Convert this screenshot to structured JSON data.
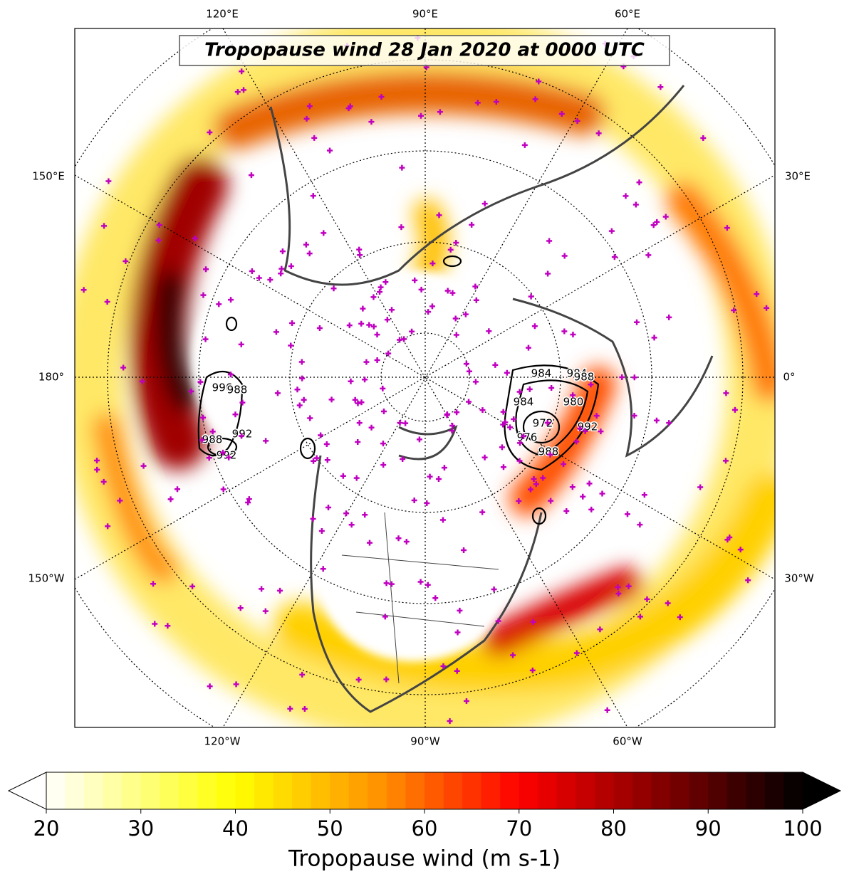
{
  "title": "Tropopause wind 28 Jan 2020 at 0000 UTC",
  "lon_labels": {
    "top": [
      "120°E",
      "90°E",
      "60°E"
    ],
    "left": [
      "150°E",
      "180°",
      "150°W"
    ],
    "right": [
      "30°E",
      "0°",
      "30°W"
    ],
    "bottom": [
      "120°W",
      "90°W",
      "60°W"
    ]
  },
  "contour_labels": [
    "996",
    "988",
    "992",
    "988",
    "992",
    "984",
    "984",
    "988",
    "984",
    "980",
    "972",
    "976",
    "988",
    "992"
  ],
  "colorbar": {
    "label": "Tropopause wind (m s-1)",
    "range": [
      20,
      100
    ],
    "ticks": [
      20,
      30,
      40,
      50,
      60,
      70,
      80,
      90,
      100
    ]
  }
}
